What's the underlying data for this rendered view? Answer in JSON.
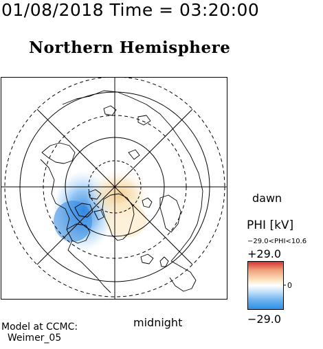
{
  "header": {
    "timestamp": "01/08/2018 Time = 03:20:00",
    "hemisphere_title": "Northern Hemisphere"
  },
  "map": {
    "projection": "polar",
    "hemisphere": "north",
    "orientation": {
      "bottom": "midnight",
      "right": "dawn"
    },
    "labels": {
      "dawn": "dawn",
      "midnight": "midnight"
    },
    "grid": {
      "latitude_circles": 4,
      "meridians": 8,
      "dashed_and_solid": true
    },
    "potential_features": [
      {
        "sign": "negative",
        "location": "pre-midnight / dusk side",
        "color": "#3b8fe6"
      },
      {
        "sign": "positive",
        "location": "near pole, slightly toward noon",
        "color": "#f7d79a"
      }
    ]
  },
  "colorbar": {
    "title": "PHI [kV]",
    "range_text": "−29.0<PHI<10.6",
    "max_label": "+29.0",
    "min_label": "−29.0",
    "zero_tick": "0",
    "min": -29.0,
    "max": 29.0,
    "colors": {
      "top": "#d43a34",
      "middle": "#ffffff",
      "bottom": "#2a8ee8"
    }
  },
  "footer": {
    "model": "Model at CCMC:\n  Weimer_05"
  }
}
